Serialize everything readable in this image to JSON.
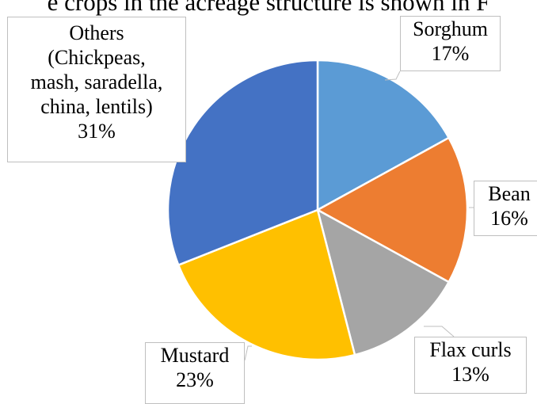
{
  "page": {
    "top_text": "...e crops in the acreage structure is shown in F..."
  },
  "chart_data": {
    "type": "pie",
    "start": "12 o'clock, clockwise",
    "slices": [
      {
        "label": "Sorghum",
        "value": 17,
        "pct_label": "17%",
        "color": "#5b9bd5"
      },
      {
        "label": "Bean",
        "value": 16,
        "pct_label": "16%",
        "color": "#ed7d31"
      },
      {
        "label": "Flax curls",
        "value": 13,
        "pct_label": "13%",
        "color": "#a5a5a5"
      },
      {
        "label": "Mustard",
        "value": 23,
        "pct_label": "23%",
        "color": "#ffc000"
      },
      {
        "label": "Others (Chickpeas, mash, saradella, china, lentils)",
        "lines": [
          "Others",
          "(Chickpeas,",
          "mash, saradella,",
          "china, lentils)"
        ],
        "value": 31,
        "pct_label": "31%",
        "color": "#4472c4"
      }
    ]
  }
}
